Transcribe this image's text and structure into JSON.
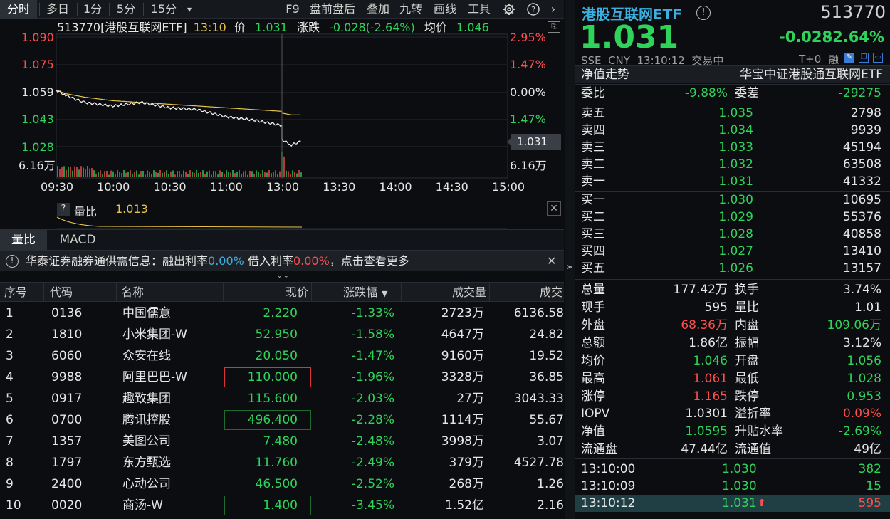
{
  "toolbar": {
    "items": [
      "分时",
      "多日",
      "1分",
      "5分",
      "15分",
      "F9",
      "盘前盘后",
      "叠加",
      "九转",
      "画线",
      "工具"
    ]
  },
  "chart": {
    "info": {
      "title": "513770[港股互联网ETF]",
      "time": "13:10",
      "price_label": "价",
      "price": "1.031",
      "chg_label": "涨跌",
      "chg": "-0.028(-2.64%)",
      "avg_label": "均价",
      "avg": "1.046"
    },
    "left_ticks": [
      "1.090",
      "1.075",
      "1.059",
      "1.043",
      "1.028",
      "6.16万"
    ],
    "right_ticks": [
      "2.95%",
      "1.47%",
      "0.00%",
      "1.47%",
      "",
      "6.16万"
    ],
    "price_tag": "1.031",
    "time_ticks": [
      "09:30",
      "10:00",
      "10:30",
      "11:00",
      "13:00",
      "13:30",
      "14:00",
      "14:30",
      "15:00"
    ],
    "volume_ratio_label": "量比",
    "volume_ratio": "1.013",
    "help_glyph": "?"
  },
  "chart_data": {
    "type": "line",
    "x": [
      "09:30",
      "09:35",
      "09:45",
      "10:00",
      "10:15",
      "10:30",
      "10:45",
      "11:00",
      "11:15",
      "11:30",
      "13:00",
      "13:05",
      "13:10"
    ],
    "series": [
      {
        "values": [
          1.06,
          1.057,
          1.053,
          1.051,
          1.053,
          1.05,
          1.049,
          1.045,
          1.043,
          1.04,
          1.032,
          1.029,
          1.031
        ]
      },
      {
        "values": [
          1.06,
          1.058,
          1.056,
          1.054,
          1.053,
          1.052,
          1.051,
          1.05,
          1.049,
          1.048,
          1.047,
          1.046,
          1.046
        ]
      }
    ],
    "ylim": [
      1.028,
      1.09
    ]
  },
  "tabs": [
    "量比",
    "MACD"
  ],
  "banner": {
    "prefix": "华泰证券融券通供需信息：融出利率",
    "rate1": "0.00%",
    "mid": "借入利率",
    "rate2": "0.00%",
    "suffix": "，点击查看更多"
  },
  "table": {
    "headers": [
      "序号",
      "代码",
      "名称",
      "现价",
      "涨跌幅",
      "成交量",
      "成交"
    ],
    "rows": [
      [
        "1",
        "0136",
        "中国儒意",
        "2.220",
        "-1.33%",
        "2723万",
        "6136.58"
      ],
      [
        "2",
        "1810",
        "小米集团-W",
        "52.950",
        "-1.58%",
        "4647万",
        "24.82"
      ],
      [
        "3",
        "6060",
        "众安在线",
        "20.050",
        "-1.47%",
        "9160万",
        "19.52"
      ],
      [
        "4",
        "9988",
        "阿里巴巴-W",
        "110.000",
        "-1.96%",
        "3328万",
        "36.85"
      ],
      [
        "5",
        "0917",
        "趣致集团",
        "115.600",
        "-2.03%",
        "27万",
        "3043.33"
      ],
      [
        "6",
        "0700",
        "腾讯控股",
        "496.400",
        "-2.28%",
        "1114万",
        "55.67"
      ],
      [
        "7",
        "1357",
        "美图公司",
        "7.480",
        "-2.48%",
        "3998万",
        "3.07"
      ],
      [
        "8",
        "1797",
        "东方甄选",
        "11.760",
        "-2.49%",
        "379万",
        "4527.78"
      ],
      [
        "9",
        "2400",
        "心动公司",
        "46.500",
        "-2.52%",
        "268万",
        "1.26"
      ],
      [
        "10",
        "0020",
        "商汤-W",
        "1.400",
        "-3.45%",
        "1.52亿",
        "2.16"
      ]
    ]
  },
  "quote": {
    "name": "港股互联网ETF",
    "code": "513770",
    "price": "1.031",
    "chg": "-0.028",
    "pct": "-2.64%",
    "market": "SSE",
    "currency": "CNY",
    "time": "13:10:12",
    "status": "交易中",
    "tplus": "T+0",
    "rong": "融",
    "nav_trend": "净值走势",
    "fund_name": "华宝中证港股通互联网ETF",
    "weibi_label": "委比",
    "weibi": "-9.88%",
    "weicha_label": "委差",
    "weicha": "-29275",
    "asks": [
      [
        "卖五",
        "1.035",
        "2798"
      ],
      [
        "卖四",
        "1.034",
        "9939"
      ],
      [
        "卖三",
        "1.033",
        "45194"
      ],
      [
        "卖二",
        "1.032",
        "63508"
      ],
      [
        "卖一",
        "1.031",
        "41332"
      ]
    ],
    "bids": [
      [
        "买一",
        "1.030",
        "10695"
      ],
      [
        "买二",
        "1.029",
        "55376"
      ],
      [
        "买三",
        "1.028",
        "40858"
      ],
      [
        "买四",
        "1.027",
        "13410"
      ],
      [
        "买五",
        "1.026",
        "13157"
      ]
    ],
    "stats": [
      [
        "总量",
        "177.42万",
        "换手",
        "3.74%"
      ],
      [
        "现手",
        "595",
        "量比",
        "1.01"
      ],
      [
        "外盘",
        "68.36万",
        "内盘",
        "109.06万"
      ],
      [
        "总额",
        "1.86亿",
        "振幅",
        "3.12%"
      ],
      [
        "均价",
        "1.046",
        "开盘",
        "1.056"
      ],
      [
        "最高",
        "1.061",
        "最低",
        "1.028"
      ],
      [
        "涨停",
        "1.165",
        "跌停",
        "0.953"
      ]
    ],
    "etf": [
      [
        "IOPV",
        "1.0301",
        "溢折率",
        "0.09%"
      ],
      [
        "净值",
        "1.0595",
        "升贴水率",
        "-2.69%"
      ],
      [
        "流通盘",
        "47.44亿",
        "流通值",
        "49亿"
      ]
    ],
    "ticks": [
      [
        "13:10:00",
        "1.030",
        "382"
      ],
      [
        "13:10:09",
        "1.030",
        "15"
      ],
      [
        "13:10:12",
        "1.031",
        "595"
      ]
    ]
  },
  "colors": {
    "up": "#ff4d4d",
    "down": "#2fd35a",
    "avg": "#e8c34a",
    "bg": "#0b0d10"
  }
}
